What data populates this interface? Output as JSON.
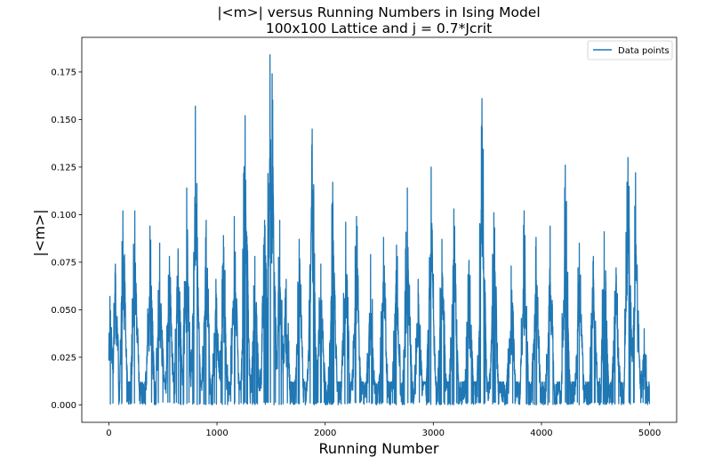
{
  "chart_data": {
    "type": "line",
    "title_line1": "|<m>| versus Running Numbers in Ising Model",
    "title_line2": "100x100 Lattice and j = 0.7*Jcrit",
    "xlabel": "Running Number",
    "ylabel": "|<m>|",
    "xlim": [
      -250,
      5250
    ],
    "ylim": [
      -0.0092,
      0.1932
    ],
    "xticks": [
      0,
      1000,
      2000,
      3000,
      4000,
      5000
    ],
    "xtick_labels": [
      "0",
      "1000",
      "2000",
      "3000",
      "4000",
      "5000"
    ],
    "yticks": [
      0.0,
      0.025,
      0.05,
      0.075,
      0.1,
      0.125,
      0.15,
      0.175
    ],
    "ytick_labels": [
      "0.000",
      "0.025",
      "0.050",
      "0.075",
      "0.100",
      "0.125",
      "0.150",
      "0.175"
    ],
    "grid": false,
    "legend_position": "upper right",
    "series": [
      {
        "name": "Data points",
        "color": "#1f77b4",
        "n_points": 5000,
        "x_start": 0,
        "x_end": 4999,
        "peaks": [
          [
            10,
            0.057
          ],
          [
            60,
            0.074
          ],
          [
            130,
            0.102
          ],
          [
            240,
            0.102
          ],
          [
            380,
            0.094
          ],
          [
            470,
            0.085
          ],
          [
            560,
            0.078
          ],
          [
            640,
            0.082
          ],
          [
            720,
            0.114
          ],
          [
            800,
            0.157
          ],
          [
            900,
            0.097
          ],
          [
            990,
            0.066
          ],
          [
            1060,
            0.089
          ],
          [
            1160,
            0.099
          ],
          [
            1260,
            0.152
          ],
          [
            1350,
            0.078
          ],
          [
            1440,
            0.097
          ],
          [
            1490,
            0.184
          ],
          [
            1510,
            0.174
          ],
          [
            1580,
            0.097
          ],
          [
            1640,
            0.066
          ],
          [
            1760,
            0.087
          ],
          [
            1880,
            0.145
          ],
          [
            1960,
            0.074
          ],
          [
            2070,
            0.117
          ],
          [
            2190,
            0.096
          ],
          [
            2290,
            0.099
          ],
          [
            2420,
            0.079
          ],
          [
            2540,
            0.088
          ],
          [
            2660,
            0.084
          ],
          [
            2760,
            0.114
          ],
          [
            2860,
            0.066
          ],
          [
            2980,
            0.125
          ],
          [
            3080,
            0.087
          ],
          [
            3190,
            0.103
          ],
          [
            3330,
            0.076
          ],
          [
            3450,
            0.161
          ],
          [
            3560,
            0.101
          ],
          [
            3720,
            0.073
          ],
          [
            3840,
            0.102
          ],
          [
            3950,
            0.088
          ],
          [
            4080,
            0.094
          ],
          [
            4220,
            0.126
          ],
          [
            4350,
            0.085
          ],
          [
            4480,
            0.078
          ],
          [
            4580,
            0.091
          ],
          [
            4690,
            0.072
          ],
          [
            4800,
            0.13
          ],
          [
            4870,
            0.122
          ],
          [
            4950,
            0.04
          ]
        ],
        "y_min": 0.0,
        "y_max": 0.184
      }
    ]
  }
}
